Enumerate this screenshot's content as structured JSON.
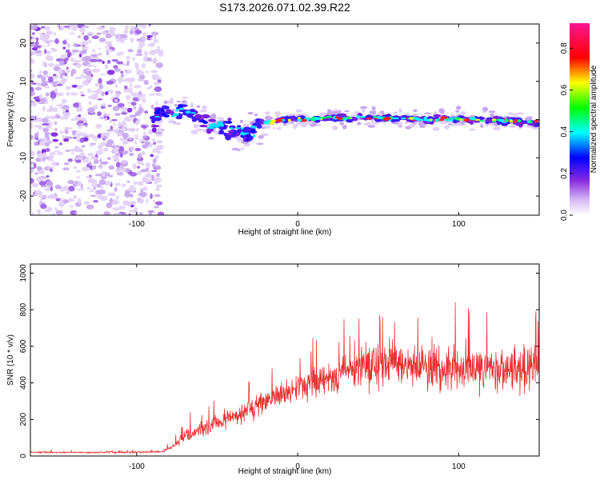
{
  "title": "S173.2026.071.02.39.R22",
  "chart_data": [
    {
      "type": "heatmap",
      "xlabel": "Height of straight line (km)",
      "ylabel": "Frequency (Hz)",
      "xlim": [
        -166,
        150
      ],
      "ylim": [
        -25,
        25
      ],
      "xticks": [
        -100,
        0,
        100
      ],
      "yticks": [
        -20,
        -10,
        0,
        10,
        20
      ],
      "colorbar": {
        "label": "Normalized spectral amplitude",
        "range": [
          0.0,
          0.92
        ],
        "ticks": [
          "0.0",
          "0.2",
          "0.4",
          "0.6",
          "0.8"
        ],
        "colors": [
          "#e9dcf8",
          "#8a2be2",
          "#0000ff",
          "#00ffff",
          "#00ff00",
          "#ffff00",
          "#ff0000",
          "#ff1493"
        ]
      },
      "features": {
        "noise_region_x": [
          -166,
          -90
        ],
        "signal_start_x": -90,
        "signal_center_hz": [
          [
            -88,
            1
          ],
          [
            -80,
            2
          ],
          [
            -70,
            2.5
          ],
          [
            -62,
            1
          ],
          [
            -55,
            -1
          ],
          [
            -48,
            -2
          ],
          [
            -40,
            -3
          ],
          [
            -32,
            -4
          ],
          [
            -25,
            -2
          ],
          [
            -20,
            -1
          ],
          [
            -10,
            0
          ],
          [
            0,
            0
          ],
          [
            20,
            0.5
          ],
          [
            40,
            0.5
          ],
          [
            60,
            0.3
          ],
          [
            80,
            0
          ],
          [
            100,
            0.2
          ],
          [
            120,
            -0.3
          ],
          [
            140,
            -0.5
          ],
          [
            148,
            -0.5
          ]
        ]
      }
    },
    {
      "type": "line",
      "xlabel": "Height of straight line (km)",
      "ylabel": "SNR (10 * v/v)",
      "xlim": [
        -166,
        150
      ],
      "ylim": [
        0,
        1050
      ],
      "xticks": [
        -100,
        0,
        100
      ],
      "yticks": [
        0,
        200,
        400,
        600,
        800,
        1000
      ],
      "line_color": "#e83030",
      "envelope": {
        "x": [
          -166,
          -120,
          -85,
          -80,
          -75,
          -70,
          -60,
          -50,
          -40,
          -30,
          -20,
          -10,
          0,
          10,
          20,
          30,
          40,
          50,
          60,
          70,
          80,
          90,
          100,
          110,
          120,
          130,
          140,
          150
        ],
        "mean": [
          20,
          20,
          22,
          40,
          70,
          110,
          150,
          180,
          210,
          250,
          300,
          330,
          360,
          400,
          430,
          460,
          480,
          490,
          500,
          490,
          500,
          480,
          490,
          470,
          480,
          470,
          480,
          500
        ],
        "spread": [
          8,
          8,
          10,
          20,
          40,
          60,
          80,
          90,
          100,
          110,
          120,
          130,
          140,
          160,
          180,
          200,
          220,
          230,
          230,
          230,
          240,
          230,
          230,
          220,
          220,
          210,
          210,
          220
        ]
      }
    }
  ]
}
